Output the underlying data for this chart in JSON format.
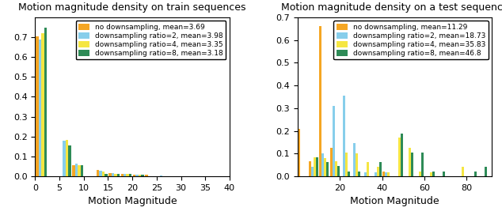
{
  "left": {
    "title": "Motion magnitude density on train sequences",
    "xlabel": "Motion Magnitude",
    "xlim": [
      0,
      40
    ],
    "ylim": [
      0,
      0.8
    ],
    "yticks": [
      0.0,
      0.1,
      0.2,
      0.3,
      0.4,
      0.5,
      0.6,
      0.7
    ],
    "xticks": [
      0,
      5,
      10,
      15,
      20,
      25,
      30,
      35,
      40
    ],
    "bin_width": 2.5,
    "bin_centers": [
      1.25,
      3.75,
      6.25,
      8.75,
      11.25,
      13.75,
      16.25,
      18.75,
      21.25,
      23.75,
      26.25
    ],
    "series": {
      "no_ds": [
        0.704,
        0.0,
        0.0,
        0.055,
        0.0,
        0.03,
        0.016,
        0.014,
        0.01,
        0.007,
        0.0
      ],
      "ds2": [
        0.686,
        0.0,
        0.181,
        0.065,
        0.0,
        0.028,
        0.016,
        0.013,
        0.01,
        0.0,
        0.005
      ],
      "ds4": [
        0.719,
        0.0,
        0.183,
        0.055,
        0.0,
        0.025,
        0.014,
        0.012,
        0.01,
        0.0,
        0.0
      ],
      "ds8": [
        0.749,
        0.0,
        0.157,
        0.055,
        0.0,
        0.011,
        0.013,
        0.011,
        0.01,
        0.0,
        0.0
      ]
    },
    "legend": [
      "no downsampling, mean=3.69",
      "downsampling ratio=2, mean=3.98",
      "downsampling ratio=4, mean=3.35",
      "downsampling ratio=8, mean=3.18"
    ]
  },
  "right": {
    "title": "Motion magnitude density on a test sequence",
    "xlabel": "Motion Magnitude",
    "xlim": [
      0,
      92
    ],
    "ylim": [
      0,
      0.7
    ],
    "yticks": [
      0.0,
      0.1,
      0.2,
      0.3,
      0.4,
      0.5,
      0.6,
      0.7
    ],
    "xticks": [
      20,
      40,
      60,
      80
    ],
    "bin_width": 5,
    "bin_centers": [
      2.5,
      7.5,
      12.5,
      17.5,
      22.5,
      27.5,
      32.5,
      37.5,
      42.5,
      47.5,
      52.5,
      57.5,
      62.5,
      67.5,
      72.5,
      77.5,
      82.5,
      87.5
    ],
    "series": {
      "no_ds": [
        0.21,
        0.067,
        0.66,
        0.124,
        0.0,
        0.0,
        0.0,
        0.0,
        0.021,
        0.0,
        0.0,
        0.0,
        0.0,
        0.0,
        0.0,
        0.0,
        0.0,
        0.0
      ],
      "ds2": [
        0.0,
        0.041,
        0.102,
        0.31,
        0.355,
        0.147,
        0.019,
        0.017,
        0.019,
        0.0,
        0.0,
        0.0,
        0.0,
        0.0,
        0.0,
        0.0,
        0.0,
        0.0
      ],
      "ds4": [
        0.0,
        0.082,
        0.079,
        0.065,
        0.104,
        0.102,
        0.062,
        0.041,
        0.019,
        0.169,
        0.125,
        0.021,
        0.019,
        0.0,
        0.0,
        0.041,
        0.0,
        0.0
      ],
      "ds8": [
        0.0,
        0.085,
        0.062,
        0.044,
        0.02,
        0.02,
        0.0,
        0.062,
        0.0,
        0.189,
        0.104,
        0.104,
        0.021,
        0.021,
        0.0,
        0.0,
        0.021,
        0.041
      ]
    },
    "legend": [
      "no downsampling, mean=11.29",
      "downsampling ratio=2, mean=18.73",
      "downsampling ratio=4, mean=35.83",
      "downsampling ratio=8, mean=46.8"
    ]
  },
  "colors": [
    "#f5a623",
    "#87ceeb",
    "#f5e642",
    "#2e8b57"
  ],
  "bar_edge_colors": [
    "#d4891e",
    "#5ab4e0",
    "#d4c832",
    "#1e6b42"
  ]
}
